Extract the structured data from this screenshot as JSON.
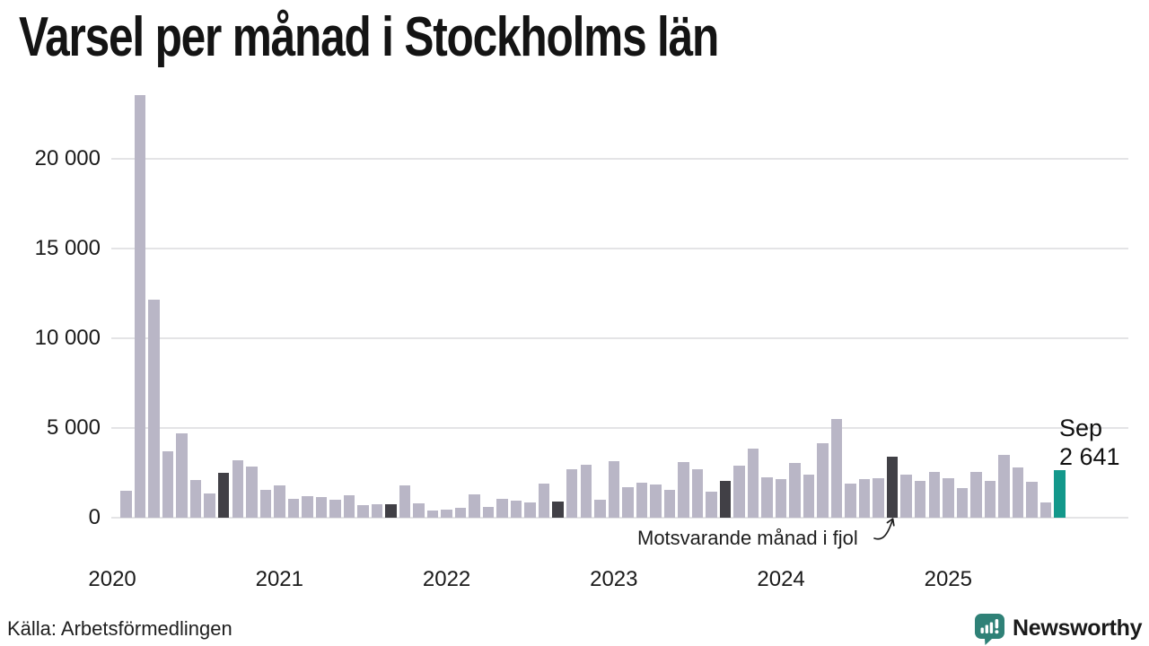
{
  "title": "Varsel per månad i Stockholms län",
  "source_caption": "Källa: Arbetsförmedlingen",
  "annotation": {
    "text": "Motsvarande månad i fjol",
    "arrow_points_to": "2024-09"
  },
  "latest": {
    "month_label": "Sep",
    "value_label": "2 641",
    "value": 2641
  },
  "branding": {
    "name": "Newsworthy",
    "color": "#2F8177"
  },
  "colors": {
    "bar": "#B9B6C6",
    "bar_dark": "#414046",
    "bar_highlight": "#13988B",
    "gridline": "#E4E4E6",
    "text": "#1A1A1A"
  },
  "chart_data": {
    "type": "bar",
    "title": "Varsel per månad i Stockholms län",
    "xlabel": "",
    "ylabel": "",
    "x_start": "2020-02",
    "x_end": "2025-09",
    "ylim": [
      0,
      24150
    ],
    "yticks": [
      0,
      5000,
      10000,
      15000,
      20000
    ],
    "ytick_labels": [
      "0",
      "5 000",
      "10 000",
      "15 000",
      "20 000"
    ],
    "xtick_labels": [
      "2020",
      "2021",
      "2022",
      "2023",
      "2024",
      "2025"
    ],
    "grid": true,
    "legend_note": "dark bars = same month previous years (September); teal bar = latest month Sep 2025",
    "series": [
      {
        "name": "Varsel per månad",
        "points": [
          {
            "m": "2020-02",
            "v": 1480
          },
          {
            "m": "2020-03",
            "v": 23550
          },
          {
            "m": "2020-04",
            "v": 12150
          },
          {
            "m": "2020-05",
            "v": 3690
          },
          {
            "m": "2020-06",
            "v": 4720
          },
          {
            "m": "2020-07",
            "v": 2100
          },
          {
            "m": "2020-08",
            "v": 1350
          },
          {
            "m": "2020-09",
            "v": 2520,
            "k": "prior_september"
          },
          {
            "m": "2020-10",
            "v": 3210
          },
          {
            "m": "2020-11",
            "v": 2850
          },
          {
            "m": "2020-12",
            "v": 1550
          },
          {
            "m": "2021-01",
            "v": 1800
          },
          {
            "m": "2021-02",
            "v": 1050
          },
          {
            "m": "2021-03",
            "v": 1180
          },
          {
            "m": "2021-04",
            "v": 1150
          },
          {
            "m": "2021-05",
            "v": 980
          },
          {
            "m": "2021-06",
            "v": 1260
          },
          {
            "m": "2021-07",
            "v": 690
          },
          {
            "m": "2021-08",
            "v": 770
          },
          {
            "m": "2021-09",
            "v": 760,
            "k": "prior_september"
          },
          {
            "m": "2021-10",
            "v": 1800
          },
          {
            "m": "2021-11",
            "v": 800
          },
          {
            "m": "2021-12",
            "v": 390
          },
          {
            "m": "2022-01",
            "v": 440
          },
          {
            "m": "2022-02",
            "v": 550
          },
          {
            "m": "2022-03",
            "v": 1300
          },
          {
            "m": "2022-04",
            "v": 600
          },
          {
            "m": "2022-05",
            "v": 1050
          },
          {
            "m": "2022-06",
            "v": 940
          },
          {
            "m": "2022-07",
            "v": 850
          },
          {
            "m": "2022-08",
            "v": 1900
          },
          {
            "m": "2022-09",
            "v": 880,
            "k": "prior_september"
          },
          {
            "m": "2022-10",
            "v": 2680
          },
          {
            "m": "2022-11",
            "v": 2930
          },
          {
            "m": "2022-12",
            "v": 1010
          },
          {
            "m": "2023-01",
            "v": 3150
          },
          {
            "m": "2023-02",
            "v": 1680
          },
          {
            "m": "2023-03",
            "v": 1960
          },
          {
            "m": "2023-04",
            "v": 1850
          },
          {
            "m": "2023-05",
            "v": 1550
          },
          {
            "m": "2023-06",
            "v": 3100
          },
          {
            "m": "2023-07",
            "v": 2710
          },
          {
            "m": "2023-08",
            "v": 1430
          },
          {
            "m": "2023-09",
            "v": 2050,
            "k": "prior_september"
          },
          {
            "m": "2023-10",
            "v": 2880
          },
          {
            "m": "2023-11",
            "v": 3850
          },
          {
            "m": "2023-12",
            "v": 2260
          },
          {
            "m": "2024-01",
            "v": 2130
          },
          {
            "m": "2024-02",
            "v": 3050
          },
          {
            "m": "2024-03",
            "v": 2400
          },
          {
            "m": "2024-04",
            "v": 4130
          },
          {
            "m": "2024-05",
            "v": 5480
          },
          {
            "m": "2024-06",
            "v": 1880
          },
          {
            "m": "2024-07",
            "v": 2140
          },
          {
            "m": "2024-08",
            "v": 2180
          },
          {
            "m": "2024-09",
            "v": 3400,
            "k": "prior_september"
          },
          {
            "m": "2024-10",
            "v": 2380
          },
          {
            "m": "2024-11",
            "v": 2050
          },
          {
            "m": "2024-12",
            "v": 2550
          },
          {
            "m": "2025-01",
            "v": 2215
          },
          {
            "m": "2025-02",
            "v": 1650
          },
          {
            "m": "2025-03",
            "v": 2550
          },
          {
            "m": "2025-04",
            "v": 2050
          },
          {
            "m": "2025-05",
            "v": 3500
          },
          {
            "m": "2025-06",
            "v": 2800
          },
          {
            "m": "2025-07",
            "v": 2000
          },
          {
            "m": "2025-08",
            "v": 850
          },
          {
            "m": "2025-09",
            "v": 2641,
            "k": "current"
          }
        ]
      }
    ]
  }
}
